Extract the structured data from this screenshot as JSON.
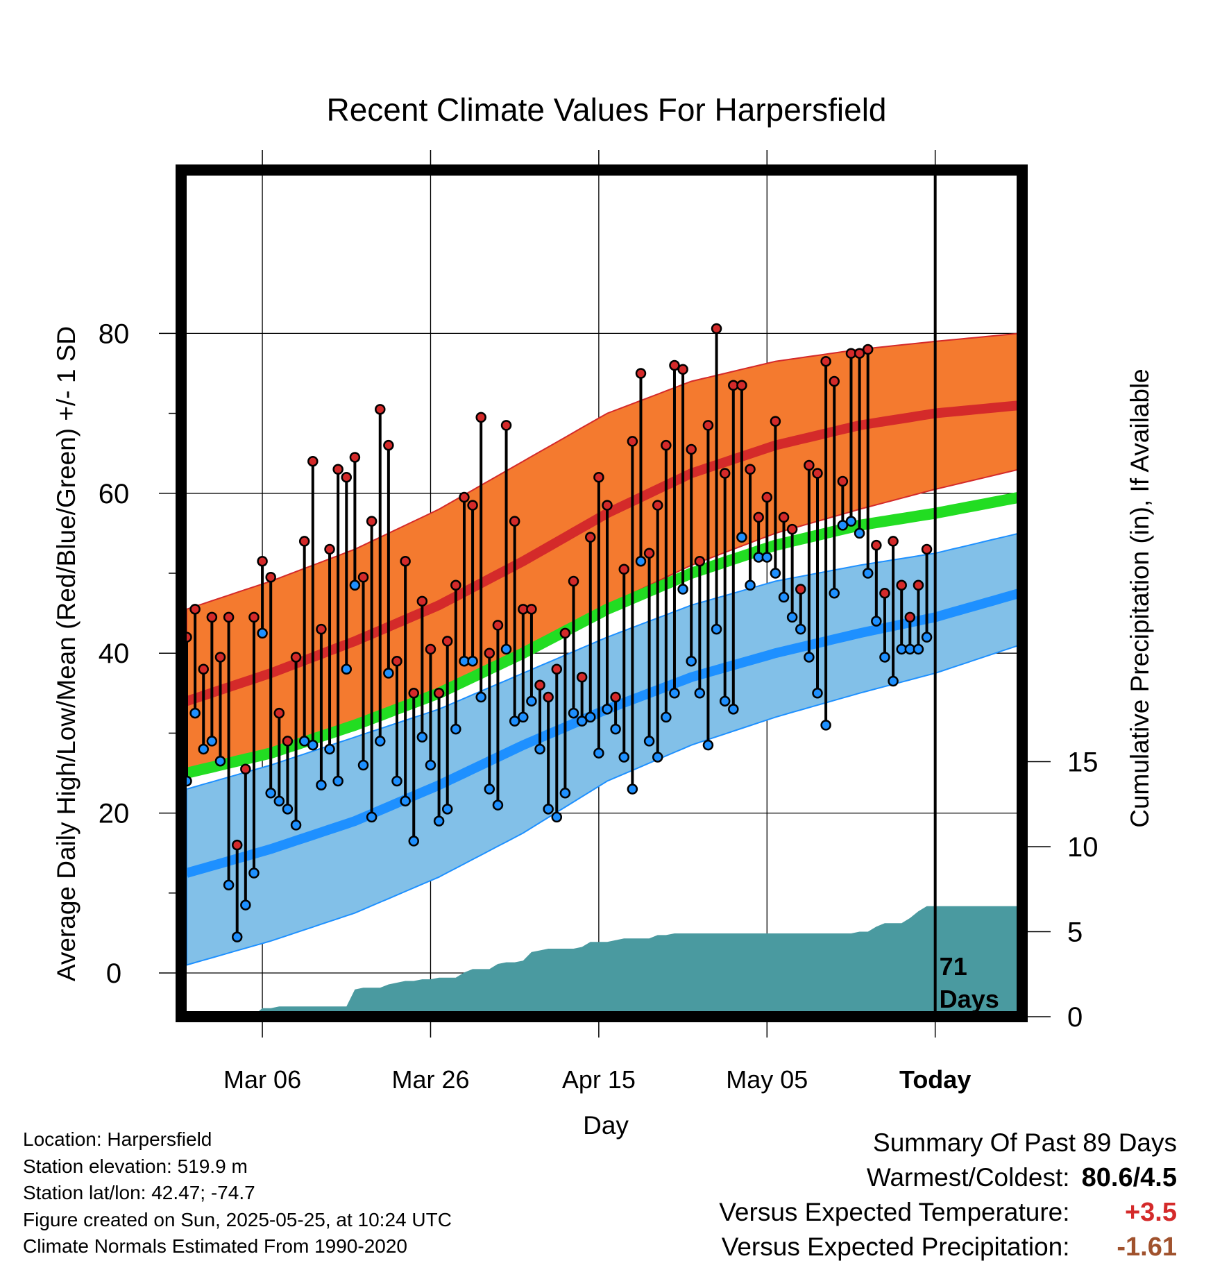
{
  "chart_data": {
    "type": "line",
    "title": "Recent Climate Values For Harpersfield",
    "xlabel": "Day",
    "ylabel_left": "Average Daily High/Low/Mean (Red/Blue/Green) +/- 1 SD",
    "ylabel_right": "Cumulative Precipitation (in), If Available",
    "x_tick_labels": [
      "Mar 06",
      "Mar 26",
      "Apr 15",
      "May 05",
      "Today"
    ],
    "y_left_ticks": [
      "0",
      "20",
      "40",
      "60",
      "80"
    ],
    "y_right_ticks": [
      "0",
      "5",
      "10",
      "15"
    ],
    "today_annotation": "71 Days",
    "day_axis": {
      "first_day": "Feb 25",
      "today": "May 25",
      "last_day": "Jun 03"
    },
    "ylim_left": [
      -5,
      87
    ],
    "ylim_right": [
      0,
      30
    ],
    "grid": true,
    "colors": {
      "high_band": "#F47A2F",
      "high_mean": "#D42A2A",
      "low_band": "#82C0E8",
      "low_mean": "#1E90FF",
      "mean": "#22DD22",
      "precip": "#4A9AA0",
      "high_marker": "#D42A2A",
      "low_marker": "#1E90FF"
    },
    "normals": {
      "day_offsets": [
        0,
        10,
        20,
        30,
        40,
        50,
        60,
        70,
        80,
        89,
        99
      ],
      "high_mean": [
        34,
        37.5,
        41.5,
        46,
        51.5,
        57.5,
        62.5,
        66,
        68.5,
        70,
        71
      ],
      "high_sd_upper": [
        45.5,
        49,
        53,
        58,
        64,
        70,
        74,
        76.5,
        78,
        79,
        80
      ],
      "high_sd_lower": [
        25,
        27.5,
        31,
        35,
        40,
        46,
        51,
        55,
        58,
        60.5,
        63
      ],
      "low_mean": [
        12.5,
        15.5,
        19,
        23.5,
        28.5,
        33,
        37,
        40,
        42.5,
        44.5,
        47.5
      ],
      "low_sd_upper": [
        23,
        26,
        29.5,
        33,
        37.5,
        42,
        46,
        49,
        51,
        52.5,
        55
      ],
      "low_sd_lower": [
        1,
        4,
        7.5,
        12,
        17.5,
        24,
        28.5,
        32,
        35,
        37.5,
        41
      ],
      "mean": [
        25,
        27.5,
        31,
        35,
        40,
        45.5,
        50,
        53.5,
        56,
        57.5,
        59.5
      ]
    },
    "series": [
      {
        "name": "High",
        "values": [
          42,
          45.5,
          38,
          44.5,
          39.5,
          44.5,
          16,
          25.5,
          44.5,
          51.5,
          49.5,
          32.5,
          29,
          39.5,
          54,
          64,
          43,
          53,
          63,
          62,
          64.5,
          49.5,
          56.5,
          70.5,
          66,
          39,
          51.5,
          35,
          46.5,
          40.5,
          35,
          41.5,
          48.5,
          59.5,
          58.5,
          69.5,
          40,
          43.5,
          68.5,
          56.5,
          45.5,
          45.5,
          36,
          34.5,
          38,
          42.5,
          49,
          37,
          54.5,
          62,
          58.5,
          34.5,
          50.5,
          66.5,
          75,
          52.5,
          58.5,
          66,
          76,
          75.5,
          65.5,
          51.5,
          68.5,
          80.6,
          62.5,
          73.5,
          73.5,
          63,
          57,
          59.5,
          69,
          57,
          55.5,
          48,
          63.5,
          62.5,
          76.5,
          74,
          61.5,
          77.5,
          77.5,
          78,
          53.5,
          47.5,
          54,
          48.5,
          44.5,
          48.5,
          53
        ]
      },
      {
        "name": "Low",
        "values": [
          24,
          32.5,
          28,
          29,
          26.5,
          11,
          4.5,
          8.5,
          12.5,
          42.5,
          22.5,
          21.5,
          20.5,
          18.5,
          29,
          28.5,
          23.5,
          28,
          24,
          38,
          48.5,
          26,
          19.5,
          29,
          37.5,
          24,
          21.5,
          16.5,
          29.5,
          26,
          19,
          20.5,
          30.5,
          39,
          39,
          34.5,
          23,
          21,
          40.5,
          31.5,
          32,
          34,
          28,
          20.5,
          19.5,
          22.5,
          32.5,
          31.5,
          32,
          27.5,
          33,
          30.5,
          27,
          23,
          51.5,
          29,
          27,
          32,
          35,
          48,
          39,
          35,
          28.5,
          43,
          34,
          33,
          54.5,
          48.5,
          52,
          52,
          50,
          47,
          44.5,
          43,
          39.5,
          35,
          31,
          47.5,
          56,
          56.5,
          55,
          50,
          44,
          39.5,
          36.5,
          40.5,
          40.5,
          40.5,
          42
        ]
      },
      {
        "name": "Cumulative Precipitation",
        "values": [
          0,
          0,
          0,
          0,
          0,
          0.1,
          0.1,
          0.1,
          0.1,
          0.5,
          0.5,
          0.6,
          0.6,
          0.6,
          0.6,
          0.6,
          0.6,
          0.6,
          0.6,
          0.6,
          1.6,
          1.7,
          1.7,
          1.7,
          1.9,
          2,
          2.1,
          2.1,
          2.2,
          2.2,
          2.3,
          2.3,
          2.3,
          2.6,
          2.8,
          2.8,
          2.8,
          3.1,
          3.2,
          3.2,
          3.3,
          3.8,
          3.9,
          4,
          4,
          4,
          4,
          4.1,
          4.4,
          4.4,
          4.4,
          4.5,
          4.6,
          4.6,
          4.6,
          4.6,
          4.8,
          4.8,
          4.9,
          4.9,
          4.9,
          4.9,
          4.9,
          4.9,
          4.9,
          4.9,
          4.9,
          4.9,
          4.9,
          4.9,
          4.9,
          4.9,
          4.9,
          4.9,
          4.9,
          4.9,
          4.9,
          4.9,
          4.9,
          4.9,
          5,
          5,
          5.3,
          5.5,
          5.5,
          5.5,
          5.8,
          6.2,
          6.5,
          6.5,
          6.5,
          6.5,
          6.5,
          6.5,
          6.5,
          6.5,
          6.5,
          6.5,
          6.5,
          6.5
        ]
      }
    ]
  },
  "footer": {
    "location": "Location: Harpersfield",
    "elevation": "Station elevation: 519.9 m",
    "latlon": "Station lat/lon: 42.47; -74.7",
    "created": "Figure created on Sun, 2025-05-25, at 10:24 UTC",
    "normals": "Climate Normals Estimated From 1990-2020"
  },
  "summary": {
    "title": "Summary Of Past 89 Days",
    "warm_cold_label": "Warmest/Coldest:",
    "warm_cold_value": "80.6/4.5",
    "temp_label": "Versus Expected Temperature:",
    "temp_value": "+3.5",
    "temp_color": "#D42A2A",
    "precip_label": "Versus Expected Precipitation:",
    "precip_value": "-1.61",
    "precip_color": "#A0522D"
  }
}
